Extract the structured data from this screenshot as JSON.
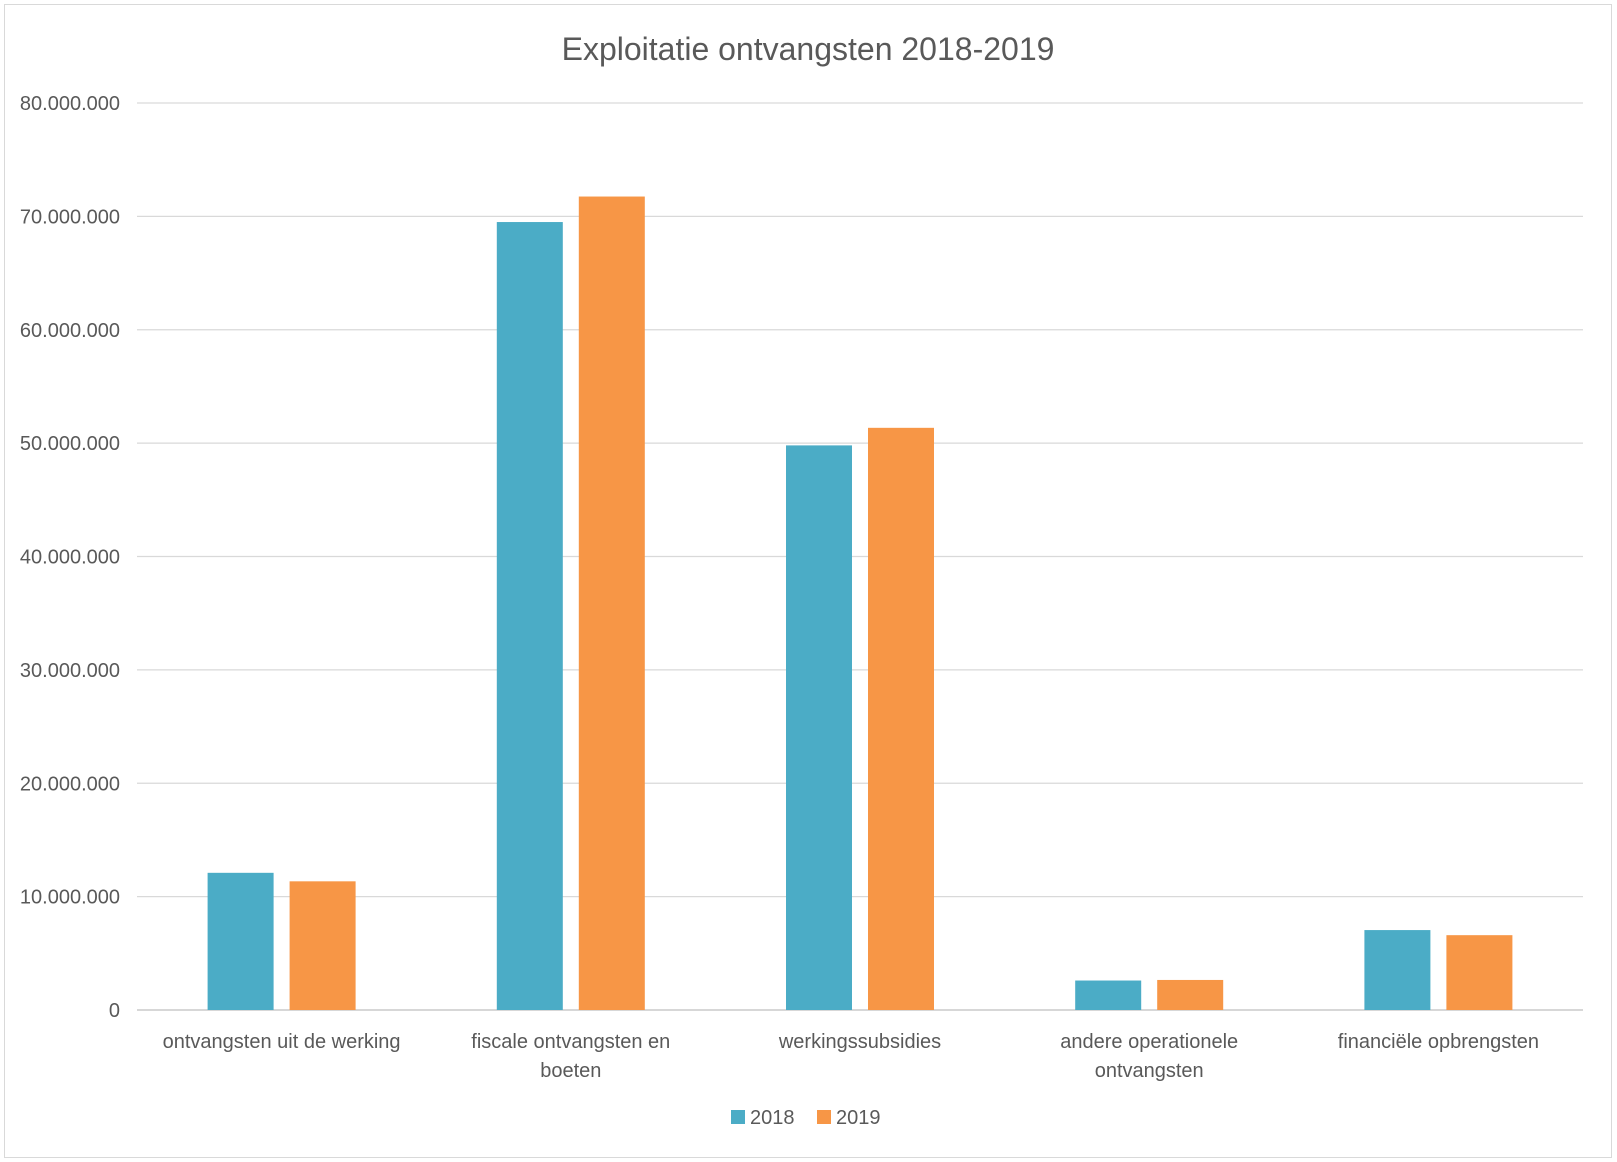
{
  "chart_data": {
    "type": "bar",
    "title": "Exploitatie ontvangsten 2018-2019",
    "xlabel": "",
    "ylabel": "",
    "categories": [
      [
        "ontvangsten uit de werking"
      ],
      [
        "fiscale ontvangsten en",
        "boeten"
      ],
      [
        "werkingssubsidies"
      ],
      [
        "andere operationele",
        "ontvangsten"
      ],
      [
        "financiële opbrengsten"
      ]
    ],
    "series": [
      {
        "name": "2018",
        "color": "#4BACC6",
        "values": [
          12100000,
          69500000,
          49800000,
          2600000,
          7050000
        ]
      },
      {
        "name": "2019",
        "color": "#F79646",
        "values": [
          11350000,
          71750000,
          51350000,
          2650000,
          6600000
        ]
      }
    ],
    "ylim": [
      0,
      80000000
    ],
    "yticks": [
      0,
      10000000,
      20000000,
      30000000,
      40000000,
      50000000,
      60000000,
      70000000,
      80000000
    ],
    "ytick_labels": [
      "0",
      "10.000.000",
      "20.000.000",
      "30.000.000",
      "40.000.000",
      "50.000.000",
      "60.000.000",
      "70.000.000",
      "80.000.000"
    ],
    "grid": true,
    "legend": "bottom"
  }
}
